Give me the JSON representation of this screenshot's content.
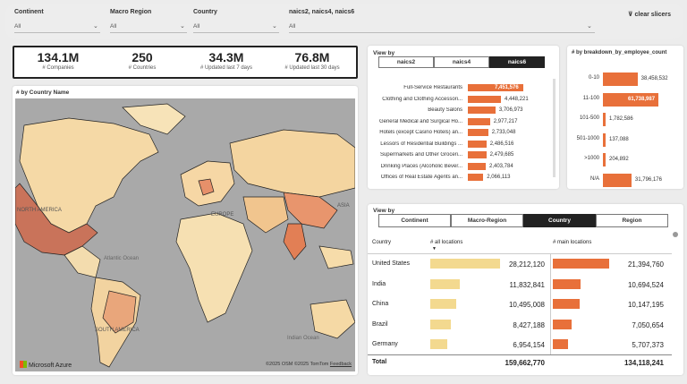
{
  "slicers": [
    {
      "label": "Continent",
      "value": "All"
    },
    {
      "label": "Macro Region",
      "value": "All"
    },
    {
      "label": "Country",
      "value": "All"
    },
    {
      "label": "naics2, naics4, naics6",
      "value": "All"
    }
  ],
  "clear_label": "clear slicers",
  "kpis": [
    {
      "value": "134.1M",
      "label": "# Companies"
    },
    {
      "value": "250",
      "label": "# Countries"
    },
    {
      "value": "34.3M",
      "label": "# Updated last 7 days"
    },
    {
      "value": "76.8M",
      "label": "# Updated last 30 days"
    }
  ],
  "map": {
    "title": "# by Country Name",
    "labels": {
      "north_america": "NORTH AMERICA",
      "europe": "EUROPE",
      "asia": "ASIA",
      "south_america": "SOUTH AMERICA",
      "atlantic": "Atlantic Ocean",
      "indian": "Indian Ocean"
    },
    "brand": "Microsoft Azure",
    "credits": "©2025 OSM  ©2025 TomTom",
    "feedback": "Feedback"
  },
  "naics": {
    "view_by": "View by",
    "tabs": [
      "naics2",
      "naics4",
      "naics6"
    ],
    "active_tab": 2,
    "rows": [
      {
        "label": "Full-Service Restaurants",
        "value": "7,451,576",
        "n": 7451576
      },
      {
        "label": "Clothing and Clothing Accessori...",
        "value": "4,448,221",
        "n": 4448221
      },
      {
        "label": "Beauty Salons",
        "value": "3,706,973",
        "n": 3706973
      },
      {
        "label": "General Medical and Surgical Ho...",
        "value": "2,977,217",
        "n": 2977217
      },
      {
        "label": "Hotels (except Casino Hotels) an...",
        "value": "2,733,048",
        "n": 2733048
      },
      {
        "label": "Lessors of Residential Buildings ...",
        "value": "2,486,516",
        "n": 2486516
      },
      {
        "label": "Supermarkets and Other Groceri...",
        "value": "2,479,685",
        "n": 2479685
      },
      {
        "label": "Drinking Places (Alcoholic Bever...",
        "value": "2,403,784",
        "n": 2403784
      },
      {
        "label": "Offices of Real Estate Agents an...",
        "value": "2,066,113",
        "n": 2066113
      }
    ]
  },
  "employees": {
    "title": "# by breakdown_by_employee_count",
    "rows": [
      {
        "label": "0-10",
        "value": "38,458,532",
        "n": 38458532
      },
      {
        "label": "11-100",
        "value": "61,738,987",
        "n": 61738987
      },
      {
        "label": "101-500",
        "value": "1,782,586",
        "n": 1782586
      },
      {
        "label": "501-1000",
        "value": "137,088",
        "n": 137088
      },
      {
        "label": ">1000",
        "value": "204,892",
        "n": 204892
      },
      {
        "label": "N/A",
        "value": "31,796,176",
        "n": 31796176
      }
    ]
  },
  "geo": {
    "view_by": "View by",
    "tabs": [
      "Continent",
      "Macro-Region",
      "Country",
      "Region"
    ],
    "active_tab": 2,
    "headers": [
      "Country",
      "# all locations",
      "# main locations"
    ],
    "rows": [
      {
        "country": "United States",
        "all": "28,212,120",
        "all_n": 28212120,
        "main": "21,394,760",
        "main_n": 21394760
      },
      {
        "country": "India",
        "all": "11,832,841",
        "all_n": 11832841,
        "main": "10,694,524",
        "main_n": 10694524
      },
      {
        "country": "China",
        "all": "10,495,008",
        "all_n": 10495008,
        "main": "10,147,195",
        "main_n": 10147195
      },
      {
        "country": "Brazil",
        "all": "8,427,188",
        "all_n": 8427188,
        "main": "7,050,654",
        "main_n": 7050654
      },
      {
        "country": "Germany",
        "all": "6,954,154",
        "all_n": 6954154,
        "main": "5,707,373",
        "main_n": 5707373
      }
    ],
    "total_label": "Total",
    "total_all": "159,662,770",
    "total_main": "134,118,241"
  }
}
